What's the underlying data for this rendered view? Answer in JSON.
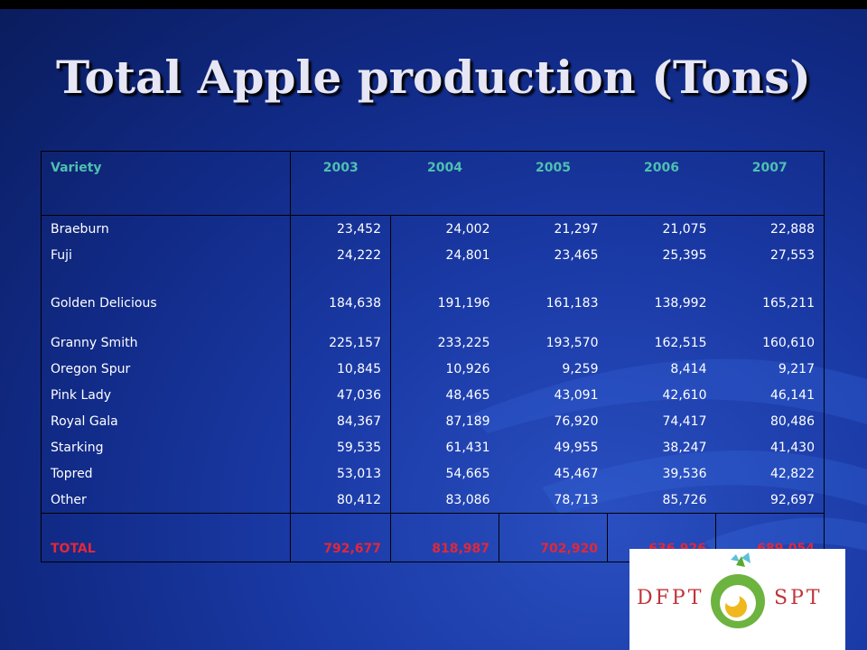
{
  "slide": {
    "title": "Total Apple production (Tons)"
  },
  "table": {
    "headers": [
      "Variety",
      "2003",
      "2004",
      "2005",
      "2006",
      "2007"
    ],
    "rows": [
      {
        "variety": "Braeburn",
        "values": [
          "23,452",
          "24,002",
          "21,297",
          "21,075",
          "22,888"
        ]
      },
      {
        "variety": "Fuji",
        "values": [
          "24,222",
          "24,801",
          "23,465",
          "25,395",
          "27,553"
        ]
      },
      {
        "variety": "Golden Delicious",
        "values": [
          "184,638",
          "191,196",
          "161,183",
          "138,992",
          "165,211"
        ]
      },
      {
        "variety": "Granny Smith",
        "values": [
          "225,157",
          "233,225",
          "193,570",
          "162,515",
          "160,610"
        ]
      },
      {
        "variety": "Oregon Spur",
        "values": [
          "10,845",
          "10,926",
          "9,259",
          "8,414",
          "9,217"
        ]
      },
      {
        "variety": "Pink Lady",
        "values": [
          "47,036",
          "48,465",
          "43,091",
          "42,610",
          "46,141"
        ]
      },
      {
        "variety": "Royal Gala",
        "values": [
          "84,367",
          "87,189",
          "76,920",
          "74,417",
          "80,486"
        ]
      },
      {
        "variety": "Starking",
        "values": [
          "59,535",
          "61,431",
          "49,955",
          "38,247",
          "41,430"
        ]
      },
      {
        "variety": "Topred",
        "values": [
          "53,013",
          "54,665",
          "45,467",
          "39,536",
          "42,822"
        ]
      },
      {
        "variety": "Other",
        "values": [
          "80,412",
          "83,086",
          "78,713",
          "85,726",
          "92,697"
        ]
      }
    ],
    "total": {
      "label": "TOTAL",
      "values": [
        "792,677",
        "818,987",
        "702,920",
        "636,926",
        "689,054"
      ]
    }
  },
  "logo": {
    "left_text": "DFPT",
    "right_text": "SPT"
  },
  "colors": {
    "header_text": "#4ec0b0",
    "total_text": "#e0283a",
    "background": "#1a3aa6"
  }
}
